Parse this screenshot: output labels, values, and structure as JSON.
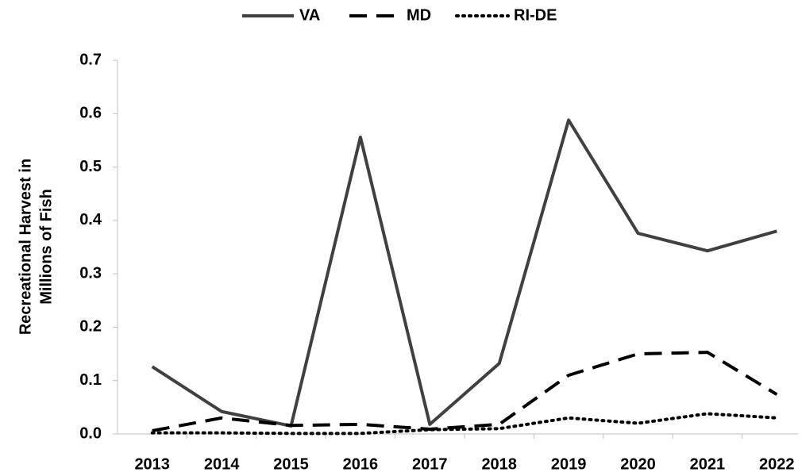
{
  "chart_data": {
    "type": "line",
    "y_label": [
      "Recreational Harvest in",
      "Millions of Fish"
    ],
    "categories": [
      "2013",
      "2014",
      "2015",
      "2016",
      "2017",
      "2018",
      "2019",
      "2020",
      "2021",
      "2022"
    ],
    "series": [
      {
        "name": "VA",
        "color": "#404040",
        "line_style": "solid",
        "values": [
          0.126,
          0.042,
          0.015,
          0.556,
          0.018,
          0.132,
          0.588,
          0.376,
          0.343,
          0.38
        ]
      },
      {
        "name": "MD",
        "color": "#000000",
        "line_style": "dash",
        "values": [
          0.006,
          0.03,
          0.016,
          0.018,
          0.009,
          0.018,
          0.11,
          0.15,
          0.153,
          0.074
        ]
      },
      {
        "name": "RI-DE",
        "color": "#000000",
        "line_style": "dot",
        "values": [
          0.002,
          0.002,
          0.001,
          0.001,
          0.008,
          0.01,
          0.03,
          0.02,
          0.038,
          0.03
        ]
      }
    ],
    "ylim": [
      0,
      0.7
    ],
    "yticks": [
      {
        "value": 0,
        "label": "0.0"
      },
      0.1,
      0.2,
      0.3,
      0.4,
      0.5,
      0.6,
      0.7
    ],
    "legend": "top"
  }
}
